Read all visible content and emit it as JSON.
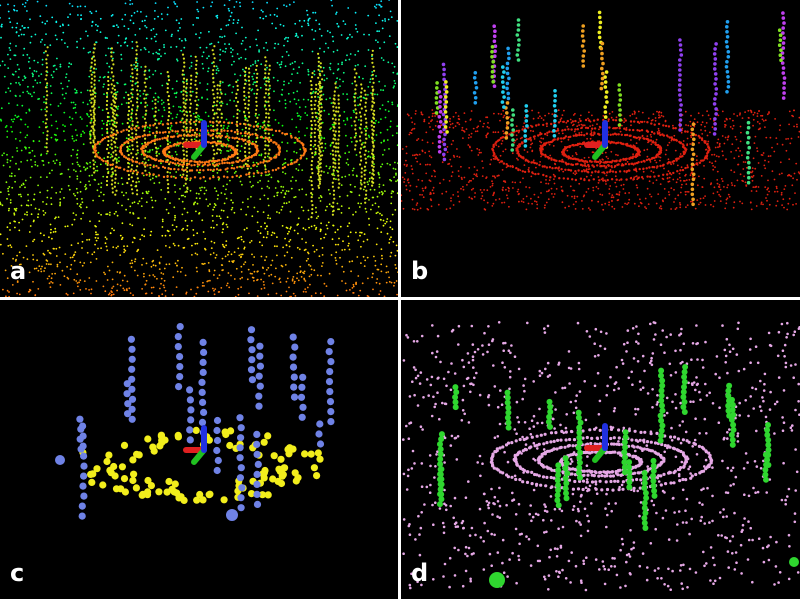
{
  "panels": [
    {
      "id": "a",
      "label": "a",
      "palette": "height-gradient"
    },
    {
      "id": "b",
      "label": "b",
      "palette": "segmented-clusters"
    },
    {
      "id": "c",
      "label": "c",
      "palette": "sparse-keypoints"
    },
    {
      "id": "d",
      "label": "d",
      "palette": "ground-vs-objects"
    }
  ],
  "colors": {
    "background": "#000000",
    "divider": "#ffffff",
    "label": "#ffffff",
    "axis_x": "#e02020",
    "axis_y": "#20c020",
    "axis_z": "#2030e0",
    "ground_b": "#e02010",
    "keypoint_blue": "#6f82e6",
    "keypoint_yellow": "#f2ee1c",
    "ground_d": "#e6a8e6",
    "objects_d": "#2fd62f"
  },
  "icons": [
    "coordinate-axes-icon"
  ]
}
